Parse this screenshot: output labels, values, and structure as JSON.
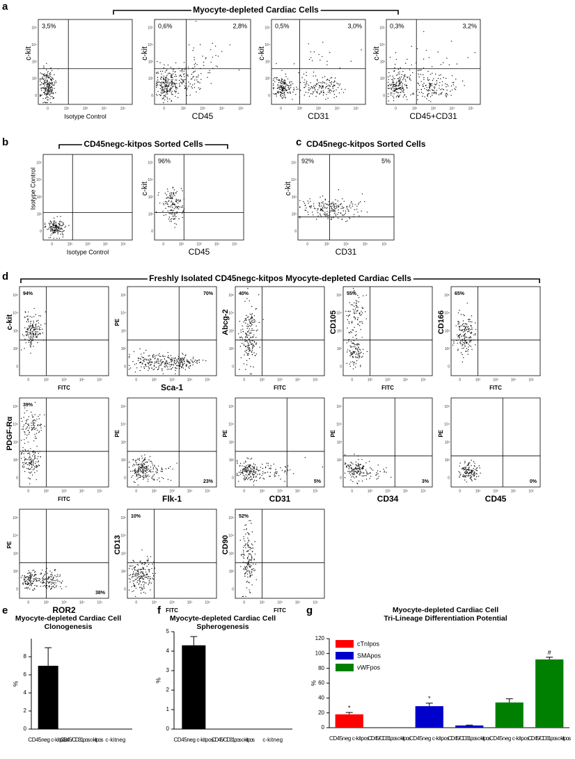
{
  "panel_letters": [
    "a",
    "b",
    "c",
    "d",
    "e",
    "f",
    "g"
  ],
  "axis_ticks_y": [
    "10⁵",
    "10⁴",
    "10³",
    "10²",
    "0"
  ],
  "axis_ticks_x": [
    "0",
    "10²",
    "10³",
    "10⁴",
    "10⁵"
  ],
  "flow": [
    {
      "header": "Myocyte-depleted Cardiac Cells",
      "plots": [
        {
          "ylabel": "c-kit",
          "xlabel": "Isotype Control",
          "quadrants": {
            "ul": "3,5%"
          }
        },
        {
          "ylabel": "c-kit",
          "xlabel": "CD45",
          "quadrants": {
            "ul": "0,6%",
            "ur": "2,8%"
          }
        },
        {
          "ylabel": "c-kit",
          "xlabel": "CD31",
          "quadrants": {
            "ul": "0,5%",
            "ur": "3,0%"
          }
        },
        {
          "ylabel": "c-kit",
          "xlabel": "CD45+CD31",
          "quadrants": {
            "ul": "0,3%",
            "ur": "3,2%"
          }
        }
      ]
    },
    {
      "header": "CD45negc-kitpos Sorted Cells",
      "plots": [
        {
          "ylabel": "Isotype Control",
          "xlabel": "Isotype Control",
          "quadrants": {}
        },
        {
          "ylabel": "c-kit",
          "xlabel": "CD45",
          "quadrants": {
            "ul": "96%"
          }
        }
      ]
    },
    {
      "header": "CD45negc-kitpos Sorted Cells",
      "plots": [
        {
          "ylabel": "c-kit",
          "xlabel": "CD31",
          "quadrants": {
            "ul": "92%",
            "ur": "5%"
          }
        }
      ]
    },
    {
      "header": "Freshly Isolated CD45negc-kitpos Myocyte-depleted Cardiac Cells",
      "plots": [
        {
          "ylabel": "c-kit",
          "xlabel": "FITC",
          "quadrants": {
            "ul": "94%"
          }
        },
        {
          "ylabel": "PE",
          "xlabel": "Sca-1",
          "quadrants": {
            "ur": "70%"
          }
        },
        {
          "ylabel": "Abcg-2",
          "xlabel": "FITC",
          "quadrants": {
            "ul": "40%"
          }
        },
        {
          "ylabel": "CD105",
          "xlabel": "FITC",
          "quadrants": {
            "ul": "55%"
          }
        },
        {
          "ylabel": "CD166",
          "xlabel": "FITC",
          "quadrants": {
            "ul": "65%"
          }
        },
        {
          "ylabel": "PDGF-Rα",
          "xlabel": "FITC",
          "quadrants": {
            "ul": "39%"
          }
        },
        {
          "ylabel": "PE",
          "xlabel": "Flk-1",
          "quadrants": {
            "lr": "23%"
          }
        },
        {
          "ylabel": "PE",
          "xlabel": "CD31",
          "quadrants": {
            "lr": "5%"
          }
        },
        {
          "ylabel": "PE",
          "xlabel": "CD34",
          "quadrants": {
            "lr": "3%"
          }
        },
        {
          "ylabel": "PE",
          "xlabel": "CD45",
          "quadrants": {
            "lr": "0%"
          }
        },
        {
          "ylabel": "PE",
          "xlabel": "ROR2",
          "quadrants": {
            "lr": "38%"
          }
        },
        {
          "ylabel": "CD13",
          "xlabel": "FITC",
          "quadrants": {
            "ul": "10%"
          }
        },
        {
          "ylabel": "CD90",
          "xlabel": "FITC",
          "quadrants": {
            "ul": "52%"
          }
        }
      ]
    }
  ],
  "chart_data": [
    {
      "type": "bar",
      "title": [
        "Myocyte-depleted Cardiac Cell",
        "Clonogenesis"
      ],
      "ylabel": "%",
      "categories": [
        "CD45neg c-kitpos",
        "CD45/CD31pos c-kitpos",
        "c-kitneg"
      ],
      "values": [
        7,
        0,
        0
      ],
      "errors": [
        2,
        null,
        null
      ],
      "color": "#000000",
      "ylim": [
        0,
        10
      ],
      "yticks": [
        0,
        2,
        4,
        6,
        8
      ]
    },
    {
      "type": "bar",
      "title": [
        "Myocyte-depleted Cardiac Cell",
        "Spherogenesis"
      ],
      "ylabel": "%",
      "categories": [
        "CD45neg c-kitpos",
        "CD45/CD31pos c-kitpos",
        "c-kitneg"
      ],
      "values": [
        4.3,
        0,
        0
      ],
      "errors": [
        0.45,
        null,
        null
      ],
      "color": "#000000",
      "ylim": [
        0,
        5
      ],
      "yticks": [
        0,
        1,
        2,
        3,
        4,
        5
      ]
    },
    {
      "type": "grouped_bar",
      "title": [
        "Myocyte-depleted Cardiac Cell",
        "Tri-Lineage Differentiation Potential"
      ],
      "ylabel": "%",
      "categories": [
        "CD45neg c-kitpos",
        "CD45/CD31pos c-kitpos"
      ],
      "series": [
        {
          "name": "cTnIpos",
          "color": "#ff0000",
          "values": [
            18,
            0
          ],
          "errors": [
            2.5,
            null
          ],
          "annotations": [
            "*",
            null
          ]
        },
        {
          "name": "SMApos",
          "color": "#0000cc",
          "values": [
            29,
            3
          ],
          "errors": [
            4,
            0.5
          ],
          "annotations": [
            "*",
            null
          ]
        },
        {
          "name": "vWFpos",
          "color": "#008000",
          "values": [
            34,
            92
          ],
          "errors": [
            5,
            3
          ],
          "annotations": [
            null,
            "#"
          ]
        }
      ],
      "ylim": [
        0,
        120
      ],
      "yticks": [
        0,
        20,
        40,
        60,
        80,
        100,
        120
      ],
      "legend": "upper left"
    }
  ]
}
